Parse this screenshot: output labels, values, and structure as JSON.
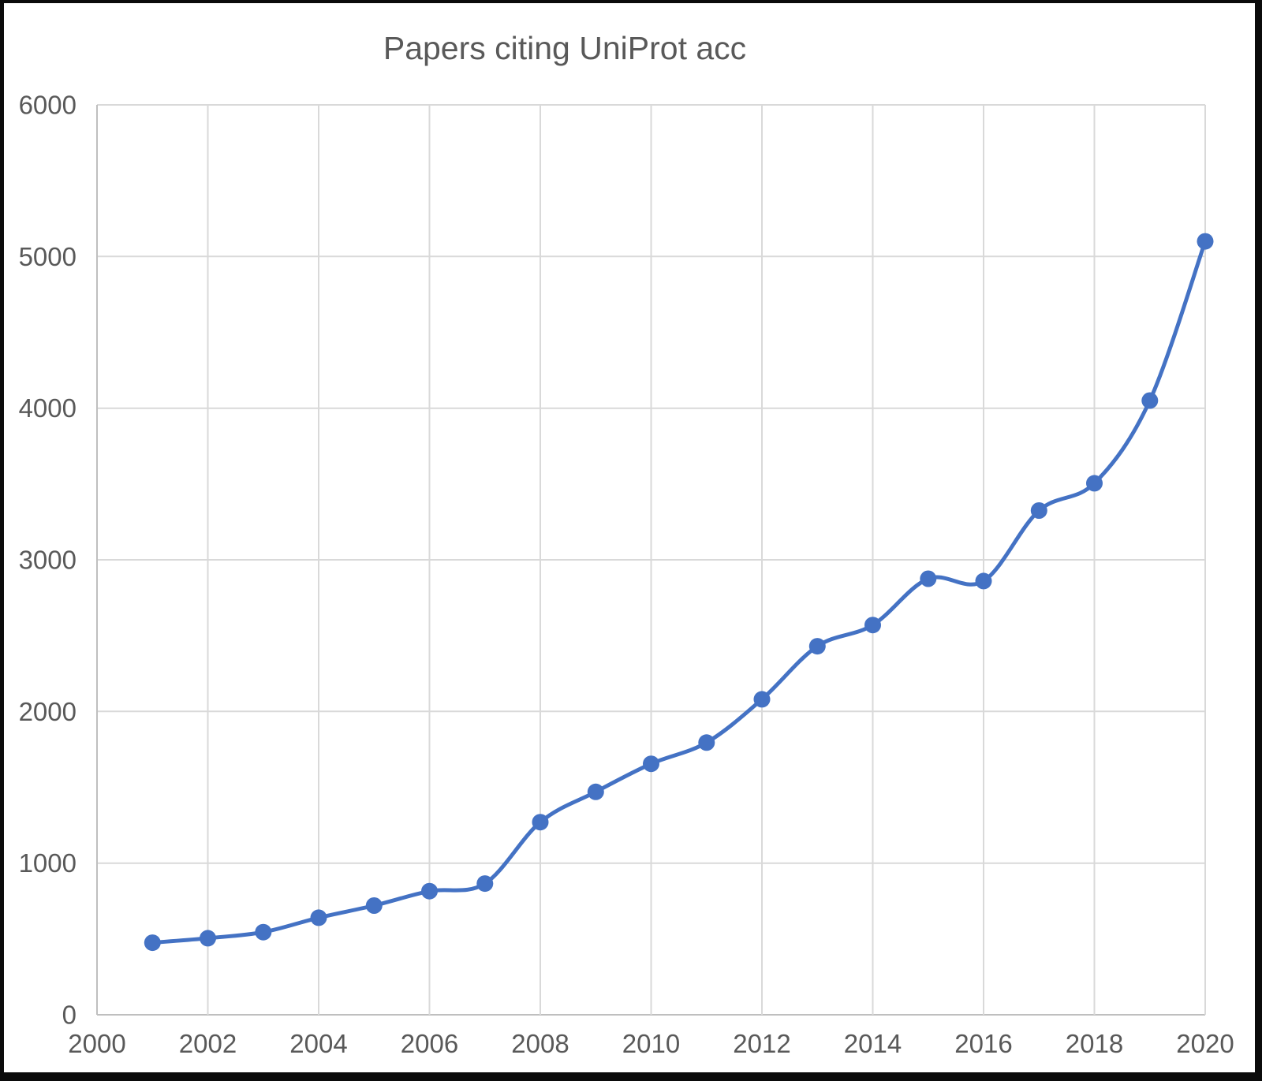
{
  "chart_data": {
    "type": "line",
    "title": "Papers citing UniProt acc",
    "x": [
      2001,
      2002,
      2003,
      2004,
      2005,
      2006,
      2007,
      2008,
      2009,
      2010,
      2011,
      2012,
      2013,
      2014,
      2015,
      2016,
      2017,
      2018,
      2019,
      2020
    ],
    "values": [
      475,
      505,
      545,
      640,
      720,
      815,
      865,
      1270,
      1470,
      1655,
      1795,
      2080,
      2430,
      2570,
      2875,
      2860,
      3325,
      3505,
      4050,
      5100
    ],
    "xlabel": "",
    "ylabel": "",
    "xlim": [
      2000,
      2020
    ],
    "ylim": [
      0,
      6000
    ],
    "x_tick_labels": [
      "2000",
      "2002",
      "2004",
      "2006",
      "2008",
      "2010",
      "2012",
      "2014",
      "2016",
      "2018",
      "2020"
    ],
    "x_tick_values": [
      2000,
      2002,
      2004,
      2006,
      2008,
      2010,
      2012,
      2014,
      2016,
      2018,
      2020
    ],
    "y_tick_labels": [
      "0",
      "1000",
      "2000",
      "3000",
      "4000",
      "5000",
      "6000"
    ],
    "y_tick_values": [
      0,
      1000,
      2000,
      3000,
      4000,
      5000,
      6000
    ],
    "grid": true,
    "legend_position": "none",
    "line_smoothed": true,
    "line_color": "#4472C4",
    "marker_color": "#4472C4",
    "gridline_color": "#D9D9D9",
    "axis_line_color": "#BFBFBF",
    "text_color": "#595959",
    "frame_color": "#0b0b0b",
    "background_color": "#ffffff"
  }
}
